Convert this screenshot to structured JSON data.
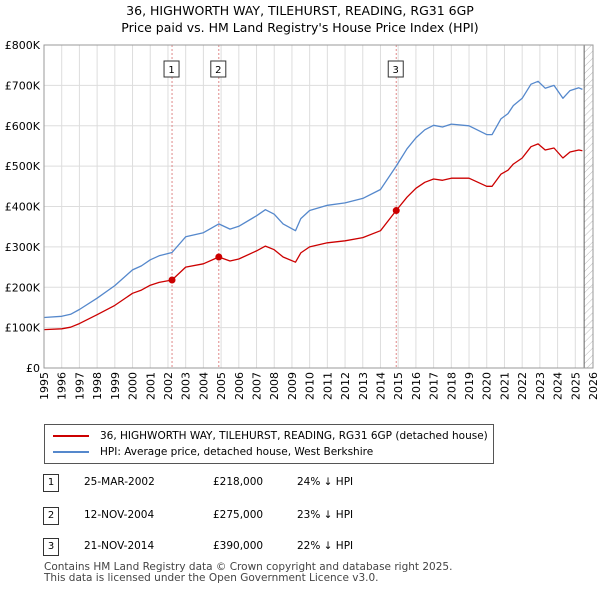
{
  "chart_data": {
    "type": "line",
    "title": "36, HIGHWORTH WAY, TILEHURST, READING, RG31 6GP",
    "subtitle": "Price paid vs. HM Land Registry's House Price Index (HPI)",
    "xlabel": "",
    "ylabel": "",
    "xlim": [
      1995,
      2026
    ],
    "ylim": [
      0,
      800000
    ],
    "y_ticks": [
      {
        "value": 0,
        "label": "£0"
      },
      {
        "value": 100000,
        "label": "£100K"
      },
      {
        "value": 200000,
        "label": "£200K"
      },
      {
        "value": 300000,
        "label": "£300K"
      },
      {
        "value": 400000,
        "label": "£400K"
      },
      {
        "value": 500000,
        "label": "£500K"
      },
      {
        "value": 600000,
        "label": "£600K"
      },
      {
        "value": 700000,
        "label": "£700K"
      },
      {
        "value": 800000,
        "label": "£800K"
      }
    ],
    "x_ticks": [
      "1995",
      "1996",
      "1997",
      "1998",
      "1999",
      "2000",
      "2001",
      "2002",
      "2003",
      "2004",
      "2005",
      "2006",
      "2007",
      "2008",
      "2009",
      "2010",
      "2011",
      "2012",
      "2013",
      "2014",
      "2015",
      "2016",
      "2017",
      "2018",
      "2019",
      "2020",
      "2021",
      "2022",
      "2023",
      "2024",
      "2025",
      "2026"
    ],
    "grid": true,
    "series": [
      {
        "name": "36, HIGHWORTH WAY, TILEHURST, READING, RG31 6GP (detached house)",
        "color": "#cc0000",
        "x": [
          1995.0,
          1996.0,
          1996.5,
          1997.0,
          1998.0,
          1999.0,
          2000.0,
          2000.5,
          2001.0,
          2001.5,
          2002.23,
          2003.0,
          2004.0,
          2004.87,
          2005.5,
          2006.0,
          2007.0,
          2007.5,
          2008.0,
          2008.5,
          2009.2,
          2009.5,
          2010.0,
          2011.0,
          2012.0,
          2013.0,
          2014.0,
          2014.89,
          2015.5,
          2016.0,
          2016.5,
          2017.0,
          2017.5,
          2018.0,
          2019.0,
          2020.0,
          2020.3,
          2020.8,
          2021.2,
          2021.5,
          2022.0,
          2022.5,
          2022.9,
          2023.3,
          2023.8,
          2024.3,
          2024.7,
          2025.2,
          2025.4
        ],
        "y": [
          95000,
          97000,
          101000,
          110000,
          132000,
          155000,
          185000,
          193000,
          205000,
          212000,
          218000,
          250000,
          258000,
          275000,
          265000,
          270000,
          290000,
          302000,
          293000,
          275000,
          262000,
          285000,
          300000,
          310000,
          315000,
          323000,
          340000,
          390000,
          423000,
          445000,
          460000,
          468000,
          465000,
          470000,
          470000,
          450000,
          450000,
          480000,
          490000,
          505000,
          520000,
          548000,
          555000,
          540000,
          545000,
          520000,
          535000,
          540000,
          538000
        ]
      },
      {
        "name": "HPI: Average price, detached house, West Berkshire",
        "color": "#5588cc",
        "x": [
          1995.0,
          1996.0,
          1996.5,
          1997.0,
          1998.0,
          1999.0,
          2000.0,
          2000.5,
          2001.0,
          2001.5,
          2002.23,
          2003.0,
          2004.0,
          2004.87,
          2005.5,
          2006.0,
          2007.0,
          2007.5,
          2008.0,
          2008.5,
          2009.2,
          2009.5,
          2010.0,
          2011.0,
          2012.0,
          2013.0,
          2014.0,
          2014.89,
          2015.5,
          2016.0,
          2016.5,
          2017.0,
          2017.5,
          2018.0,
          2019.0,
          2020.0,
          2020.3,
          2020.8,
          2021.2,
          2021.5,
          2022.0,
          2022.5,
          2022.9,
          2023.3,
          2023.8,
          2024.3,
          2024.7,
          2025.2,
          2025.4
        ],
        "y": [
          125000,
          128000,
          133000,
          145000,
          173000,
          204000,
          243000,
          253000,
          268000,
          278000,
          286000,
          325000,
          335000,
          357000,
          344000,
          351000,
          377000,
          392000,
          381000,
          357000,
          340000,
          370000,
          390000,
          403000,
          409000,
          420000,
          442000,
          500000,
          543000,
          570000,
          590000,
          601000,
          597000,
          604000,
          600000,
          578000,
          578000,
          617000,
          630000,
          650000,
          668000,
          703000,
          710000,
          693000,
          700000,
          668000,
          687000,
          694000,
          690000
        ]
      }
    ],
    "markers": [
      {
        "label": "1",
        "x": 2002.23,
        "y": 218000
      },
      {
        "label": "2",
        "x": 2004.87,
        "y": 275000
      },
      {
        "label": "3",
        "x": 2014.89,
        "y": 390000
      }
    ]
  },
  "legend": {
    "items": [
      {
        "label": "36, HIGHWORTH WAY, TILEHURST, READING, RG31 6GP (detached house)",
        "color": "#cc0000"
      },
      {
        "label": "HPI: Average price, detached house, West Berkshire",
        "color": "#5588cc"
      }
    ]
  },
  "transactions": [
    {
      "num": "1",
      "date": "25-MAR-2002",
      "price": "£218,000",
      "hpi": "24% ↓ HPI"
    },
    {
      "num": "2",
      "date": "12-NOV-2004",
      "price": "£275,000",
      "hpi": "23% ↓ HPI"
    },
    {
      "num": "3",
      "date": "21-NOV-2014",
      "price": "£390,000",
      "hpi": "22% ↓ HPI"
    }
  ],
  "footer": {
    "line1": "Contains HM Land Registry data © Crown copyright and database right 2025.",
    "line2": "This data is licensed under the Open Government Licence v3.0."
  }
}
